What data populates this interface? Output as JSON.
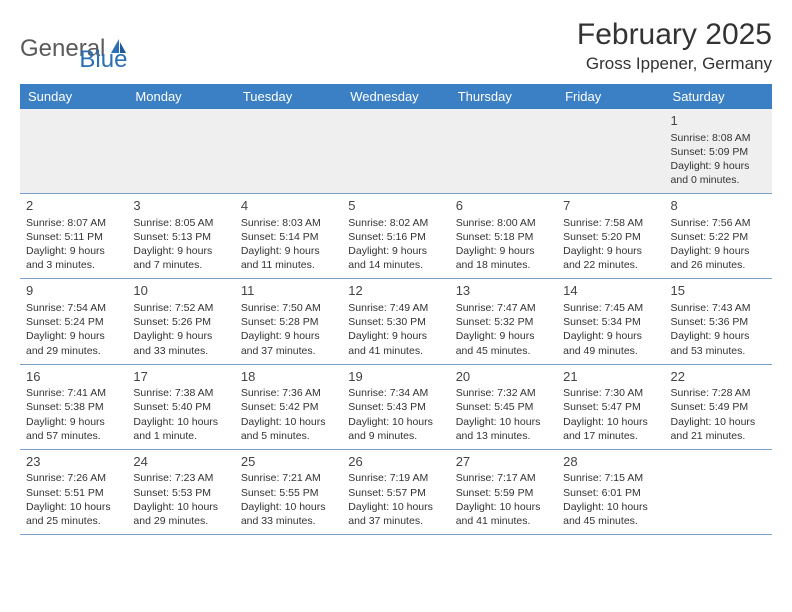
{
  "logo": {
    "general": "General",
    "blue": "Blue"
  },
  "title": "February 2025",
  "location": "Gross Ippener, Germany",
  "colors": {
    "header_bg": "#3b7fc4",
    "header_text": "#ffffff",
    "row_border": "#7a9fc4",
    "first_week_bg": "#efefef",
    "text": "#333333",
    "logo_gray": "#5a5a5a",
    "logo_blue": "#2a6fb5"
  },
  "day_names": [
    "Sunday",
    "Monday",
    "Tuesday",
    "Wednesday",
    "Thursday",
    "Friday",
    "Saturday"
  ],
  "weeks": [
    [
      null,
      null,
      null,
      null,
      null,
      null,
      {
        "n": "1",
        "sunrise": "Sunrise: 8:08 AM",
        "sunset": "Sunset: 5:09 PM",
        "daylight": "Daylight: 9 hours and 0 minutes."
      }
    ],
    [
      {
        "n": "2",
        "sunrise": "Sunrise: 8:07 AM",
        "sunset": "Sunset: 5:11 PM",
        "daylight": "Daylight: 9 hours and 3 minutes."
      },
      {
        "n": "3",
        "sunrise": "Sunrise: 8:05 AM",
        "sunset": "Sunset: 5:13 PM",
        "daylight": "Daylight: 9 hours and 7 minutes."
      },
      {
        "n": "4",
        "sunrise": "Sunrise: 8:03 AM",
        "sunset": "Sunset: 5:14 PM",
        "daylight": "Daylight: 9 hours and 11 minutes."
      },
      {
        "n": "5",
        "sunrise": "Sunrise: 8:02 AM",
        "sunset": "Sunset: 5:16 PM",
        "daylight": "Daylight: 9 hours and 14 minutes."
      },
      {
        "n": "6",
        "sunrise": "Sunrise: 8:00 AM",
        "sunset": "Sunset: 5:18 PM",
        "daylight": "Daylight: 9 hours and 18 minutes."
      },
      {
        "n": "7",
        "sunrise": "Sunrise: 7:58 AM",
        "sunset": "Sunset: 5:20 PM",
        "daylight": "Daylight: 9 hours and 22 minutes."
      },
      {
        "n": "8",
        "sunrise": "Sunrise: 7:56 AM",
        "sunset": "Sunset: 5:22 PM",
        "daylight": "Daylight: 9 hours and 26 minutes."
      }
    ],
    [
      {
        "n": "9",
        "sunrise": "Sunrise: 7:54 AM",
        "sunset": "Sunset: 5:24 PM",
        "daylight": "Daylight: 9 hours and 29 minutes."
      },
      {
        "n": "10",
        "sunrise": "Sunrise: 7:52 AM",
        "sunset": "Sunset: 5:26 PM",
        "daylight": "Daylight: 9 hours and 33 minutes."
      },
      {
        "n": "11",
        "sunrise": "Sunrise: 7:50 AM",
        "sunset": "Sunset: 5:28 PM",
        "daylight": "Daylight: 9 hours and 37 minutes."
      },
      {
        "n": "12",
        "sunrise": "Sunrise: 7:49 AM",
        "sunset": "Sunset: 5:30 PM",
        "daylight": "Daylight: 9 hours and 41 minutes."
      },
      {
        "n": "13",
        "sunrise": "Sunrise: 7:47 AM",
        "sunset": "Sunset: 5:32 PM",
        "daylight": "Daylight: 9 hours and 45 minutes."
      },
      {
        "n": "14",
        "sunrise": "Sunrise: 7:45 AM",
        "sunset": "Sunset: 5:34 PM",
        "daylight": "Daylight: 9 hours and 49 minutes."
      },
      {
        "n": "15",
        "sunrise": "Sunrise: 7:43 AM",
        "sunset": "Sunset: 5:36 PM",
        "daylight": "Daylight: 9 hours and 53 minutes."
      }
    ],
    [
      {
        "n": "16",
        "sunrise": "Sunrise: 7:41 AM",
        "sunset": "Sunset: 5:38 PM",
        "daylight": "Daylight: 9 hours and 57 minutes."
      },
      {
        "n": "17",
        "sunrise": "Sunrise: 7:38 AM",
        "sunset": "Sunset: 5:40 PM",
        "daylight": "Daylight: 10 hours and 1 minute."
      },
      {
        "n": "18",
        "sunrise": "Sunrise: 7:36 AM",
        "sunset": "Sunset: 5:42 PM",
        "daylight": "Daylight: 10 hours and 5 minutes."
      },
      {
        "n": "19",
        "sunrise": "Sunrise: 7:34 AM",
        "sunset": "Sunset: 5:43 PM",
        "daylight": "Daylight: 10 hours and 9 minutes."
      },
      {
        "n": "20",
        "sunrise": "Sunrise: 7:32 AM",
        "sunset": "Sunset: 5:45 PM",
        "daylight": "Daylight: 10 hours and 13 minutes."
      },
      {
        "n": "21",
        "sunrise": "Sunrise: 7:30 AM",
        "sunset": "Sunset: 5:47 PM",
        "daylight": "Daylight: 10 hours and 17 minutes."
      },
      {
        "n": "22",
        "sunrise": "Sunrise: 7:28 AM",
        "sunset": "Sunset: 5:49 PM",
        "daylight": "Daylight: 10 hours and 21 minutes."
      }
    ],
    [
      {
        "n": "23",
        "sunrise": "Sunrise: 7:26 AM",
        "sunset": "Sunset: 5:51 PM",
        "daylight": "Daylight: 10 hours and 25 minutes."
      },
      {
        "n": "24",
        "sunrise": "Sunrise: 7:23 AM",
        "sunset": "Sunset: 5:53 PM",
        "daylight": "Daylight: 10 hours and 29 minutes."
      },
      {
        "n": "25",
        "sunrise": "Sunrise: 7:21 AM",
        "sunset": "Sunset: 5:55 PM",
        "daylight": "Daylight: 10 hours and 33 minutes."
      },
      {
        "n": "26",
        "sunrise": "Sunrise: 7:19 AM",
        "sunset": "Sunset: 5:57 PM",
        "daylight": "Daylight: 10 hours and 37 minutes."
      },
      {
        "n": "27",
        "sunrise": "Sunrise: 7:17 AM",
        "sunset": "Sunset: 5:59 PM",
        "daylight": "Daylight: 10 hours and 41 minutes."
      },
      {
        "n": "28",
        "sunrise": "Sunrise: 7:15 AM",
        "sunset": "Sunset: 6:01 PM",
        "daylight": "Daylight: 10 hours and 45 minutes."
      },
      null
    ]
  ]
}
